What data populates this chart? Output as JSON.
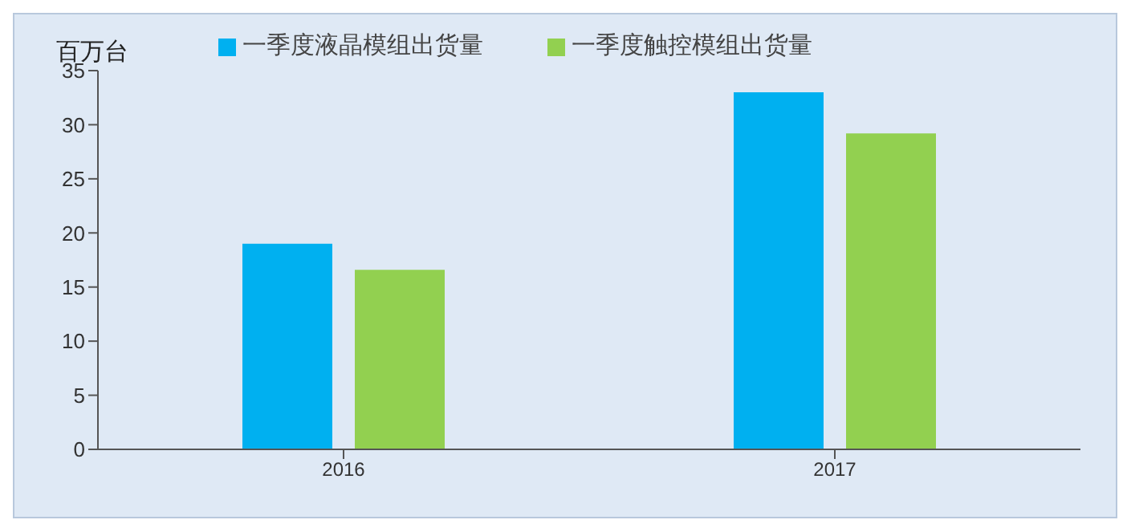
{
  "chart_data": {
    "type": "bar",
    "ylabel": "百万台",
    "categories": [
      "2016",
      "2017"
    ],
    "series": [
      {
        "name": "一季度液晶模组出货量",
        "color": "#00b0f0",
        "values": [
          19,
          33
        ]
      },
      {
        "name": "一季度触控模组出货量",
        "color": "#92d050",
        "values": [
          16.6,
          29.2
        ]
      }
    ],
    "ylim": [
      0,
      35
    ],
    "yticks": [
      0,
      5,
      10,
      15,
      20,
      25,
      30,
      35
    ],
    "grid": false,
    "legend": "top"
  }
}
